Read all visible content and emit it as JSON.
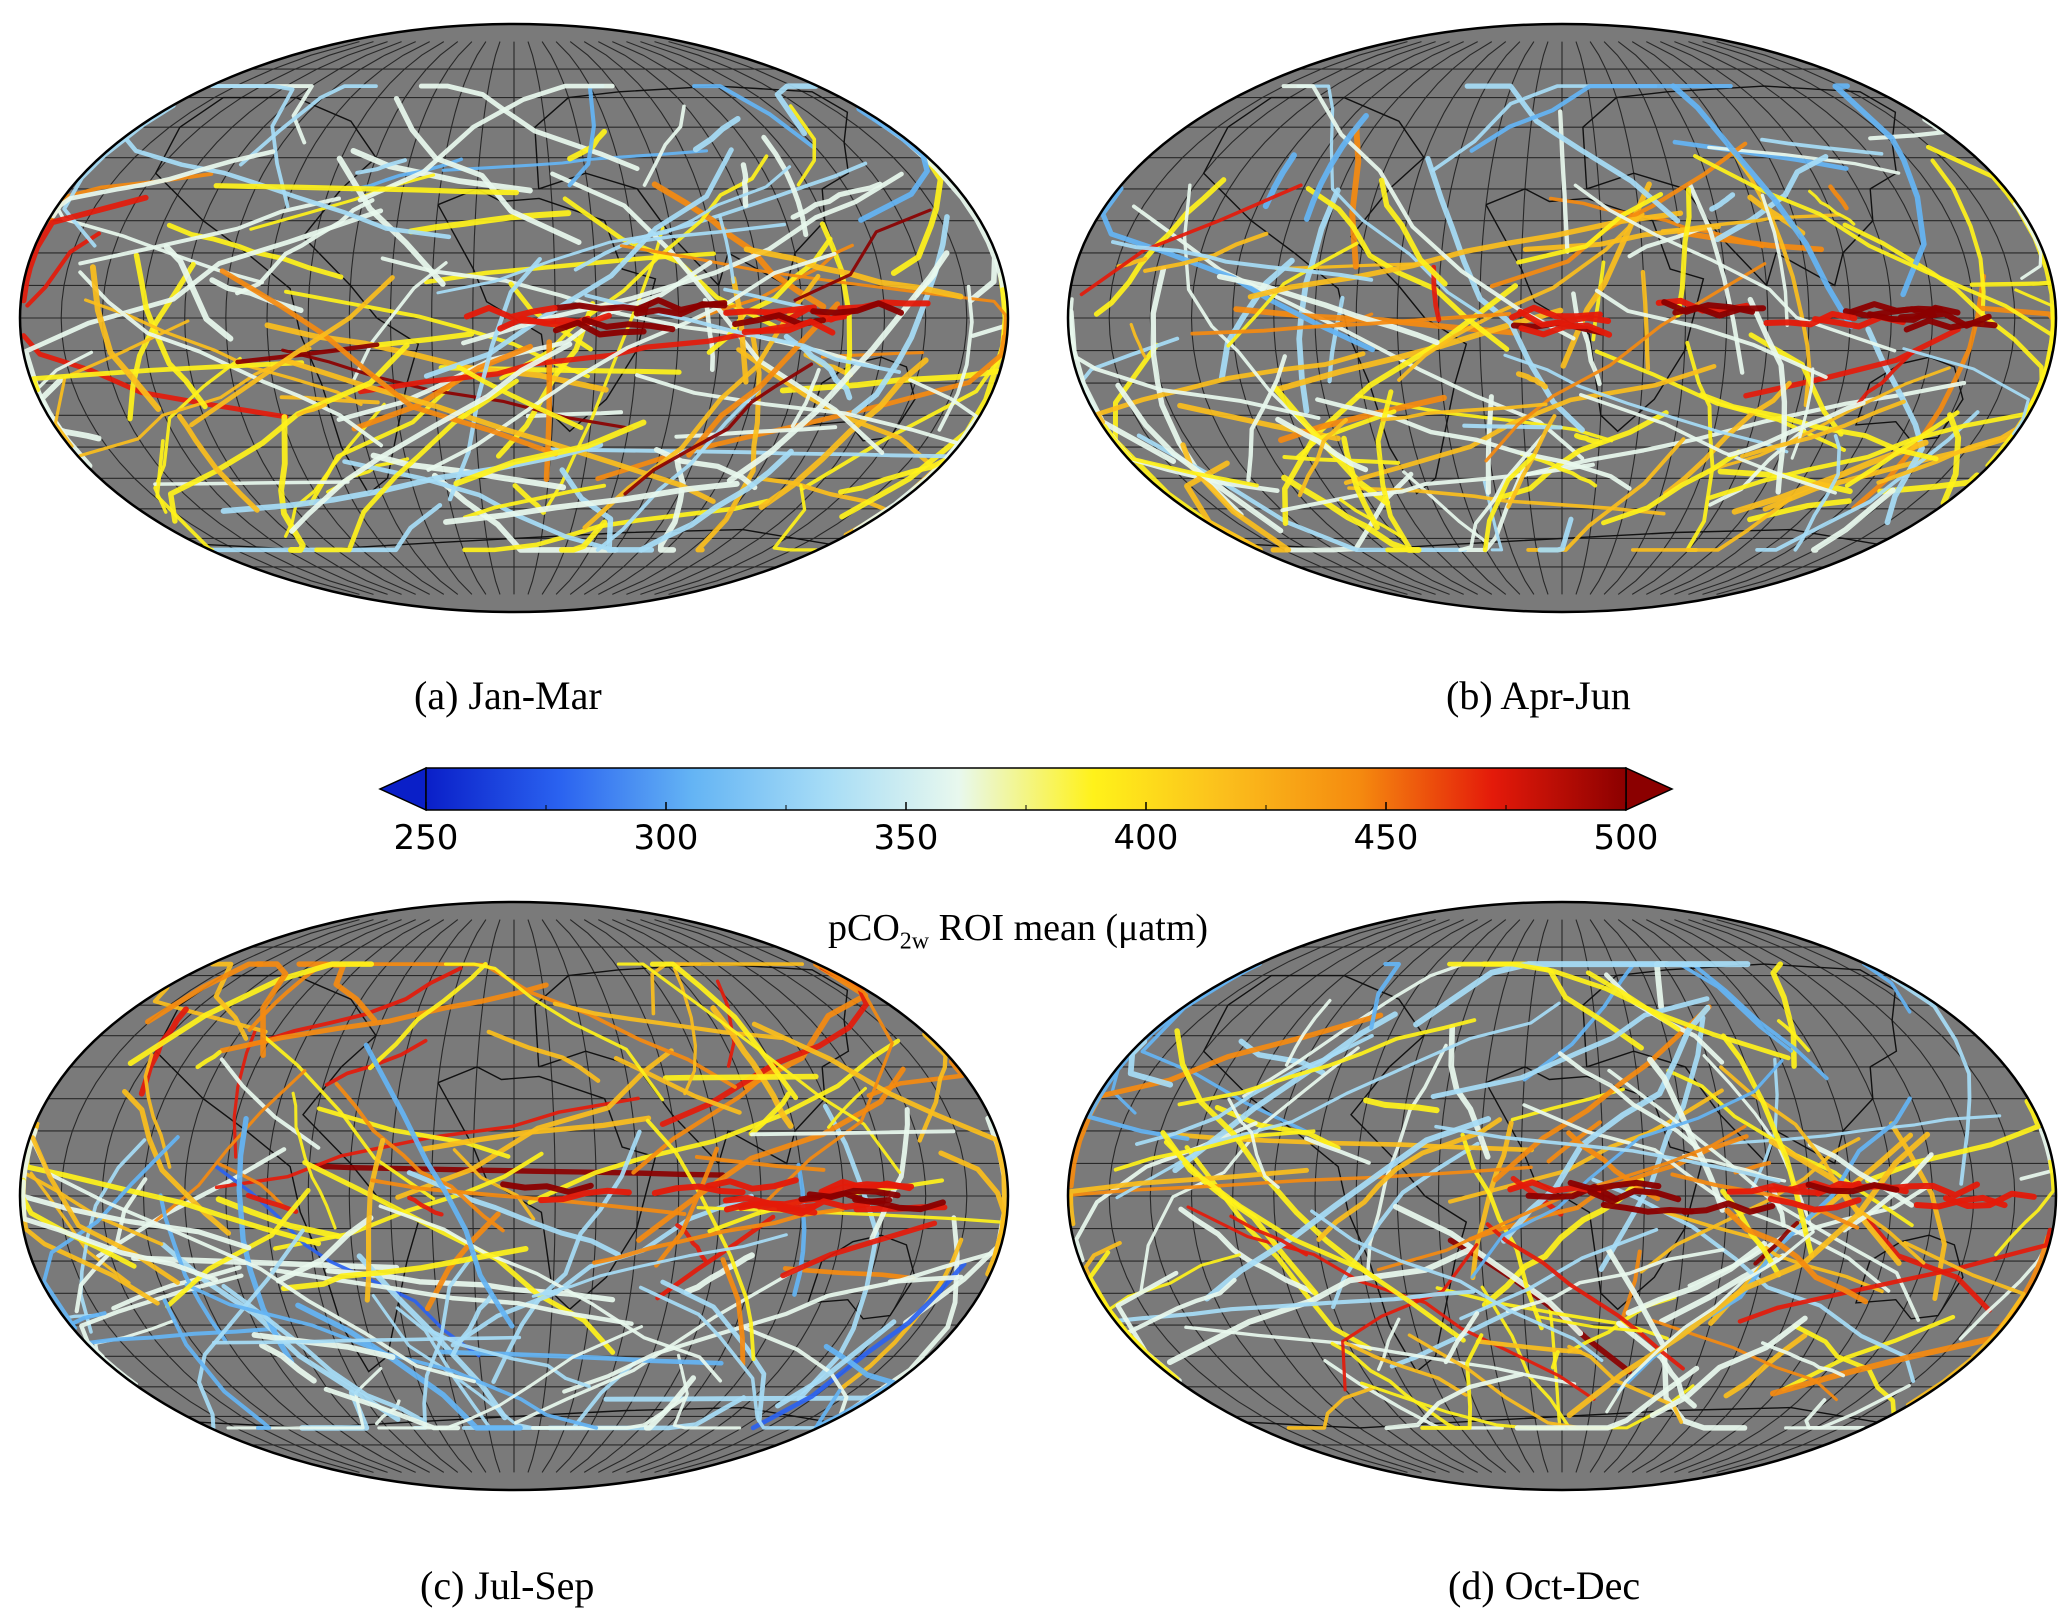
{
  "panels": [
    {
      "id": "a",
      "caption": "(a) Jan-Mar"
    },
    {
      "id": "b",
      "caption": "(b) Apr-Jun"
    },
    {
      "id": "c",
      "caption": "(c) Jul-Sep"
    },
    {
      "id": "d",
      "caption": "(d) Oct-Dec"
    }
  ],
  "colorbar": {
    "min": 250,
    "max": 500,
    "ticks": [
      "250",
      "300",
      "350",
      "400",
      "450",
      "500"
    ],
    "extend": "both",
    "title_prefix": "pCO",
    "title_sub": "2w",
    "title_suffix": " ROI mean (μatm)",
    "colors": [
      "#0a1fc8",
      "#2a62f0",
      "#64b4f4",
      "#a6dcf6",
      "#e8f8ee",
      "#fff21a",
      "#fbbe1c",
      "#f58a0f",
      "#e41a0a",
      "#8b0000"
    ]
  },
  "map_style": {
    "land_color": "#7a7a7a",
    "ocean_color": "#7a7a7a",
    "graticule_color": "#1a1a1a",
    "coast_color": "#111111"
  }
}
